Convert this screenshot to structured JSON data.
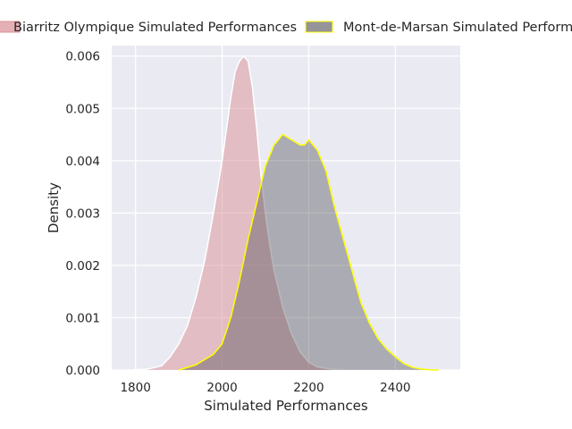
{
  "chart_data": {
    "type": "area",
    "title": "",
    "xlabel": "Simulated Performances",
    "ylabel": "Density",
    "xlim": [
      1745,
      2550
    ],
    "ylim": [
      0,
      0.0062
    ],
    "xticks": [
      1800,
      2000,
      2200,
      2400
    ],
    "xtick_labels": [
      "1800",
      "2000",
      "2200",
      "2400"
    ],
    "yticks": [
      0,
      0.001,
      0.002,
      0.003,
      0.004,
      0.005,
      0.006
    ],
    "ytick_labels": [
      "0.000",
      "0.001",
      "0.002",
      "0.003",
      "0.004",
      "0.005",
      "0.006"
    ],
    "grid": true,
    "legend_position": "top",
    "series": [
      {
        "name": "Biarritz Olympique Simulated Performances",
        "fill_color": "#d98f95",
        "edge_color": "#ffffff",
        "fill_opacity": 0.5,
        "x": [
          1790,
          1830,
          1860,
          1880,
          1900,
          1920,
          1940,
          1960,
          1980,
          2000,
          2010,
          2020,
          2030,
          2040,
          2050,
          2060,
          2070,
          2080,
          2090,
          2100,
          2110,
          2120,
          2140,
          2160,
          2180,
          2200,
          2220,
          2250,
          2280,
          2320
        ],
        "y": [
          0.0,
          2e-05,
          8e-05,
          0.00025,
          0.0005,
          0.00085,
          0.0014,
          0.0021,
          0.003,
          0.004,
          0.0046,
          0.0052,
          0.0057,
          0.0059,
          0.006,
          0.0059,
          0.0054,
          0.0046,
          0.0037,
          0.003,
          0.0024,
          0.0019,
          0.0012,
          0.0007,
          0.00035,
          0.00015,
          6e-05,
          2e-05,
          5e-06,
          0.0
        ]
      },
      {
        "name": "Mont-de-Marsan Simulated Performances",
        "fill_color": "#4d4d55",
        "edge_color": "#ffff00",
        "fill_opacity": 0.4,
        "x": [
          1900,
          1940,
          1960,
          1980,
          2000,
          2020,
          2040,
          2060,
          2080,
          2100,
          2120,
          2140,
          2160,
          2180,
          2190,
          2200,
          2210,
          2220,
          2240,
          2260,
          2280,
          2300,
          2320,
          2340,
          2360,
          2380,
          2400,
          2420,
          2440,
          2460,
          2480,
          2500
        ],
        "y": [
          0.0,
          0.0001,
          0.0002,
          0.0003,
          0.0005,
          0.001,
          0.0017,
          0.0025,
          0.0032,
          0.0039,
          0.0043,
          0.0045,
          0.0044,
          0.0043,
          0.0043,
          0.0044,
          0.0043,
          0.0042,
          0.0038,
          0.0031,
          0.0025,
          0.0019,
          0.0013,
          0.0009,
          0.0006,
          0.0004,
          0.00025,
          0.00012,
          5e-05,
          2e-05,
          5e-06,
          0.0
        ]
      }
    ]
  }
}
